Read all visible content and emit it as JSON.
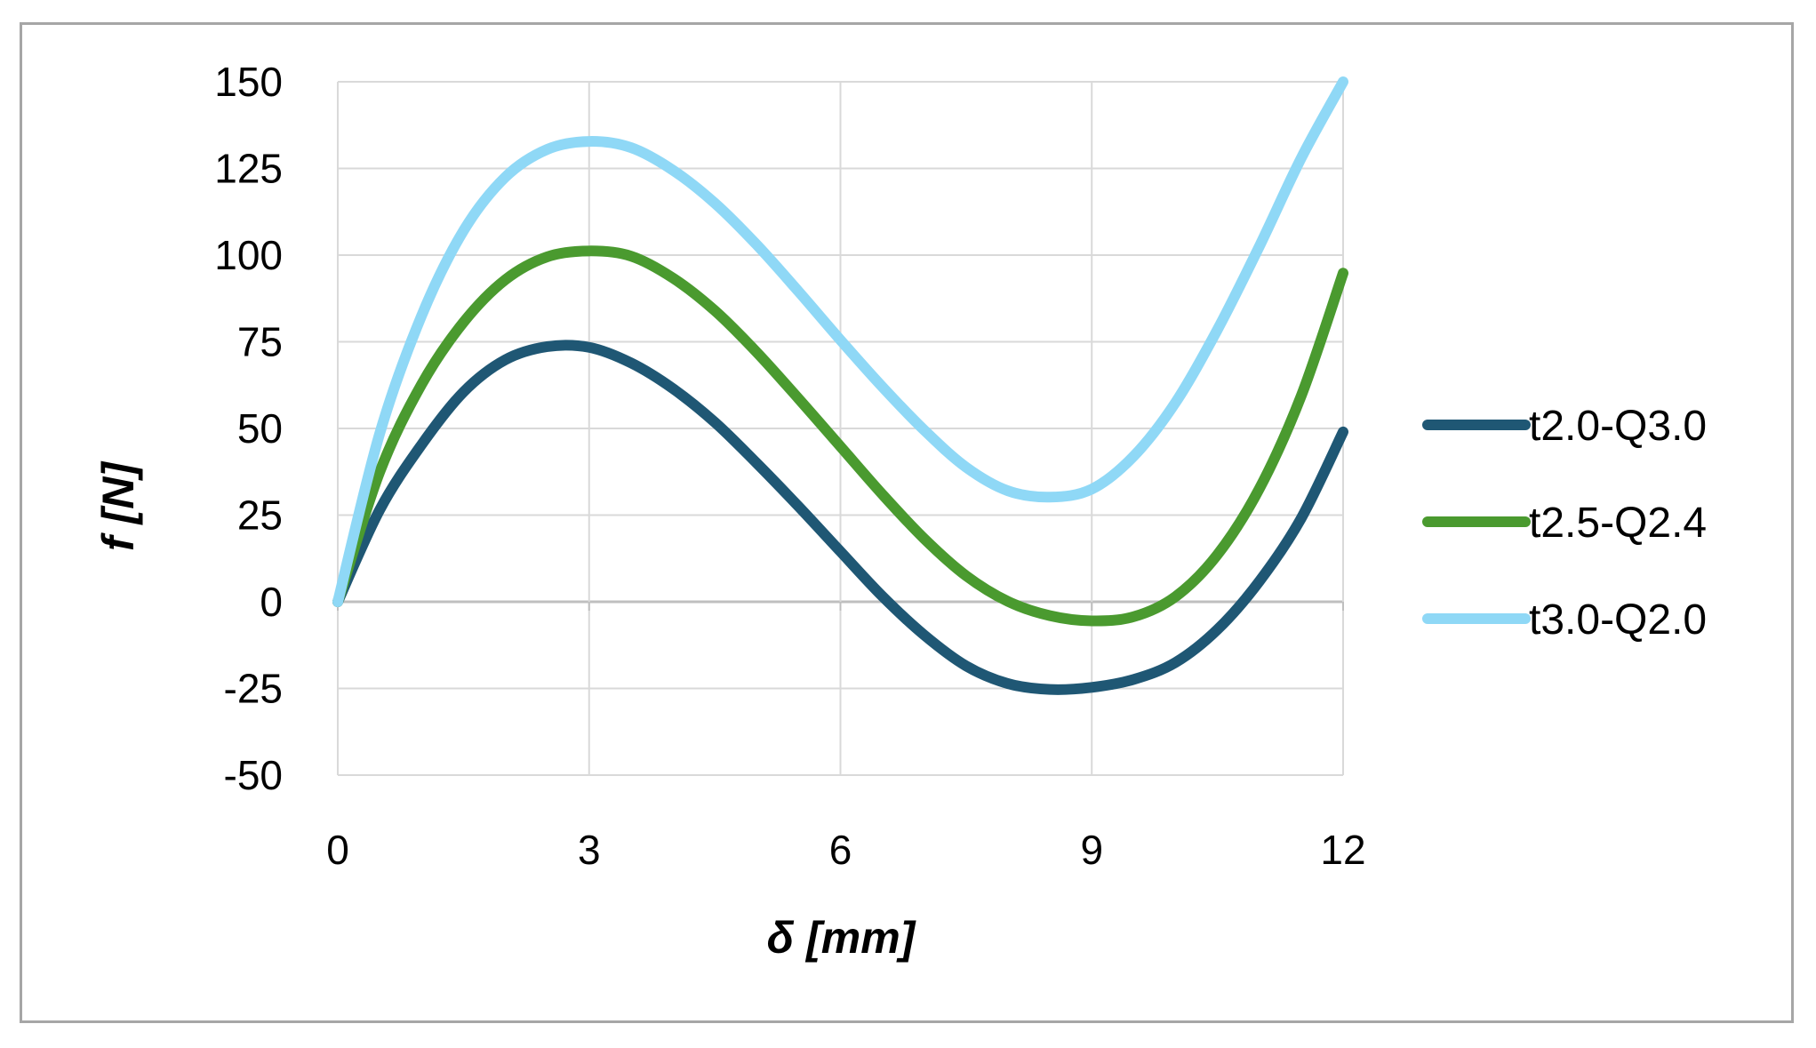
{
  "chart_data": {
    "type": "line",
    "title": "",
    "xlabel": "δ [mm]",
    "ylabel": "f [N]",
    "xlim": [
      0,
      12
    ],
    "ylim": [
      -50,
      150
    ],
    "xticks": [
      0,
      3,
      6,
      9,
      12
    ],
    "yticks": [
      -50,
      -25,
      0,
      25,
      50,
      75,
      100,
      125,
      150
    ],
    "xtick_labels": [
      "0",
      "3",
      "6",
      "9",
      "12"
    ],
    "ytick_labels": [
      "-50",
      "-25",
      "0",
      "25",
      "50",
      "75",
      "100",
      "125",
      "150"
    ],
    "grid": true,
    "legend_position": "right",
    "x": [
      0,
      0.5,
      1,
      1.5,
      2,
      2.5,
      3,
      3.5,
      4,
      4.5,
      5,
      5.5,
      6,
      6.5,
      7,
      7.5,
      8,
      8.5,
      9,
      9.5,
      10,
      10.5,
      11,
      11.5,
      12
    ],
    "series": [
      {
        "name": "t2.0-Q3.0",
        "color": "#1f5774",
        "values": [
          0,
          26.5,
          45.3,
          60.5,
          69.8,
          73.6,
          73.4,
          68.9,
          61.5,
          51.8,
          40.0,
          27.5,
          14.5,
          1.6,
          -9.6,
          -18.5,
          -23.6,
          -25.3,
          -24.7,
          -22.4,
          -17.5,
          -8.0,
          5.9,
          24.1,
          49.0
        ]
      },
      {
        "name": "t2.5-Q2.4",
        "color": "#4a9a2f",
        "values": [
          0,
          37.4,
          62.7,
          80.6,
          92.9,
          99.5,
          101.2,
          99.7,
          93.4,
          84.0,
          72.0,
          58.6,
          44.8,
          31.0,
          18.2,
          7.5,
          0.1,
          -4.0,
          -5.5,
          -4.3,
          1.5,
          13.6,
          32.6,
          59.4,
          94.8
        ]
      },
      {
        "name": "t3.0-Q2.0",
        "color": "#8fd8f6",
        "values": [
          0,
          48.5,
          82.5,
          107.0,
          122.5,
          130.5,
          132.8,
          131.0,
          124.5,
          115.0,
          103.0,
          89.5,
          75.5,
          62.0,
          49.5,
          38.8,
          32.0,
          30.2,
          32.5,
          42.0,
          57.5,
          78.5,
          102.5,
          128.0,
          152.0
        ]
      }
    ]
  }
}
